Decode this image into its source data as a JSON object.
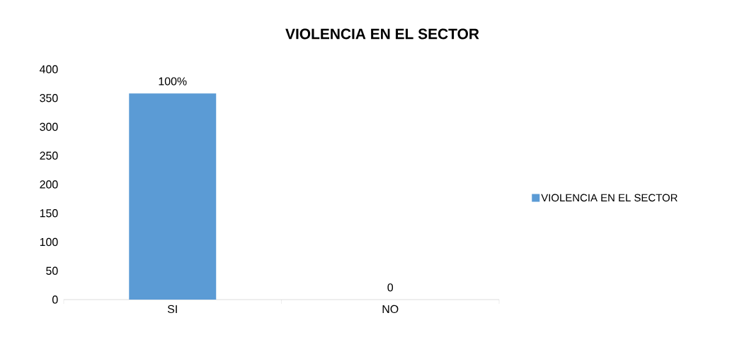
{
  "chart_data": {
    "type": "bar",
    "title": "VIOLENCIA EN EL SECTOR",
    "categories": [
      "SI",
      "NO"
    ],
    "series": [
      {
        "name": "VIOLENCIA EN EL SECTOR",
        "color": "#5b9bd5",
        "values": [
          358,
          0
        ]
      }
    ],
    "annotations": [
      {
        "text": "100%",
        "x": "SI",
        "y": 358
      },
      {
        "text": "0",
        "x": "NO",
        "y": 0
      }
    ],
    "ylim": [
      0,
      400
    ],
    "yticks": [
      0,
      50,
      100,
      150,
      200,
      250,
      300,
      350,
      400
    ],
    "grid": false,
    "legend": "right"
  }
}
